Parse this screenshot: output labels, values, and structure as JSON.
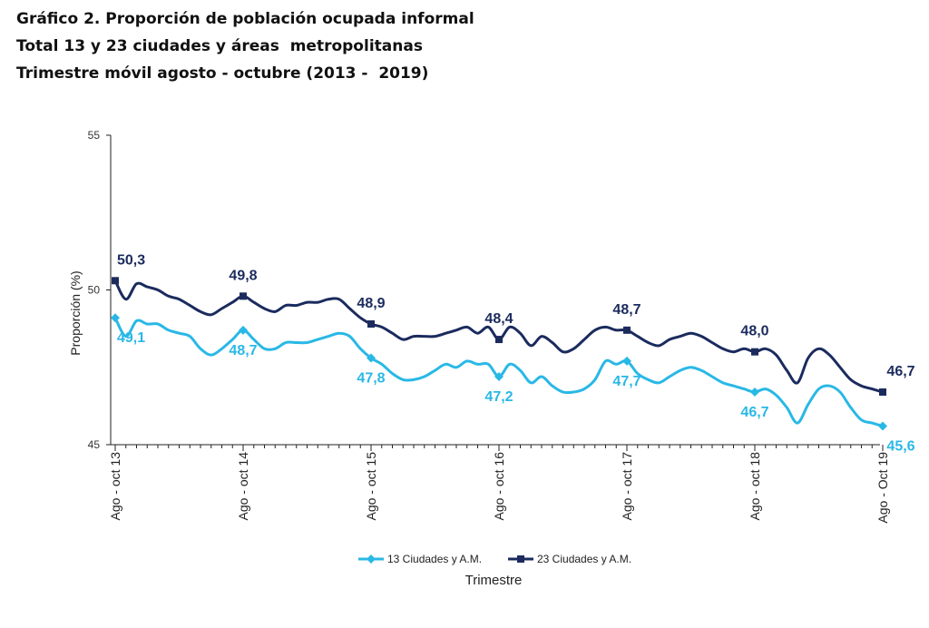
{
  "titles": {
    "line1": "Gráfico 2. Proporción de población ocupada informal",
    "line2": "Total 13 y 23 ciudades y áreas  metropolitanas",
    "line3": "Trimestre móvil agosto - octubre (2013 -  2019)"
  },
  "chart_data": {
    "type": "line",
    "ylabel": "Proporción (%)",
    "xlabel": "Trimestre",
    "ylim": [
      45,
      55
    ],
    "yticks": [
      "45",
      "50",
      "55"
    ],
    "ytick_values": [
      45,
      50,
      55
    ],
    "grid": false,
    "legend_position": "bottom",
    "x_tick_labels": [
      "Ago - oct 13",
      "Ago - oct 14",
      "Ago - oct 15",
      "Ago - oct 16",
      "Ago - oct 17",
      "Ago - oct 18",
      "Ago - Oct 19"
    ],
    "x_tick_indices": [
      0,
      12,
      24,
      36,
      48,
      60,
      72
    ],
    "series": [
      {
        "name": "13 Ciudades y A.M.",
        "color": "#29b8e6",
        "marker": "diamond",
        "label_position": "below",
        "values": [
          49.1,
          48.5,
          49.0,
          48.9,
          48.9,
          48.7,
          48.6,
          48.5,
          48.1,
          47.9,
          48.1,
          48.4,
          48.7,
          48.4,
          48.1,
          48.1,
          48.3,
          48.3,
          48.3,
          48.4,
          48.5,
          48.6,
          48.5,
          48.1,
          47.8,
          47.6,
          47.3,
          47.1,
          47.1,
          47.2,
          47.4,
          47.6,
          47.5,
          47.7,
          47.6,
          47.6,
          47.2,
          47.6,
          47.4,
          47.0,
          47.2,
          46.9,
          46.7,
          46.7,
          46.8,
          47.1,
          47.7,
          47.6,
          47.7,
          47.3,
          47.1,
          47.0,
          47.2,
          47.4,
          47.5,
          47.4,
          47.2,
          47.0,
          46.9,
          46.8,
          46.7,
          46.8,
          46.6,
          46.2,
          45.7,
          46.3,
          46.8,
          46.9,
          46.7,
          46.2,
          45.8,
          45.7,
          45.6
        ],
        "labels": [
          {
            "index": 0,
            "text": "49,1"
          },
          {
            "index": 12,
            "text": "48,7"
          },
          {
            "index": 24,
            "text": "47,8"
          },
          {
            "index": 36,
            "text": "47,2"
          },
          {
            "index": 48,
            "text": "47,7"
          },
          {
            "index": 60,
            "text": "46,7"
          },
          {
            "index": 72,
            "text": "45,6"
          }
        ]
      },
      {
        "name": "23  Ciudades y A.M.",
        "color": "#1b2b5e",
        "marker": "square",
        "label_position": "above",
        "values": [
          50.3,
          49.7,
          50.2,
          50.1,
          50.0,
          49.8,
          49.7,
          49.5,
          49.3,
          49.2,
          49.4,
          49.6,
          49.8,
          49.6,
          49.4,
          49.3,
          49.5,
          49.5,
          49.6,
          49.6,
          49.7,
          49.7,
          49.4,
          49.1,
          48.9,
          48.8,
          48.6,
          48.4,
          48.5,
          48.5,
          48.5,
          48.6,
          48.7,
          48.8,
          48.6,
          48.8,
          48.4,
          48.8,
          48.6,
          48.2,
          48.5,
          48.3,
          48.0,
          48.1,
          48.4,
          48.7,
          48.8,
          48.7,
          48.7,
          48.5,
          48.3,
          48.2,
          48.4,
          48.5,
          48.6,
          48.5,
          48.3,
          48.1,
          48.0,
          48.1,
          48.0,
          48.1,
          47.9,
          47.4,
          47.0,
          47.8,
          48.1,
          47.9,
          47.5,
          47.1,
          46.9,
          46.8,
          46.7
        ],
        "labels": [
          {
            "index": 0,
            "text": "50,3"
          },
          {
            "index": 12,
            "text": "49,8"
          },
          {
            "index": 24,
            "text": "48,9"
          },
          {
            "index": 36,
            "text": "48,4"
          },
          {
            "index": 48,
            "text": "48,7"
          },
          {
            "index": 60,
            "text": "48,0"
          },
          {
            "index": 72,
            "text": "46,7"
          }
        ]
      }
    ]
  }
}
